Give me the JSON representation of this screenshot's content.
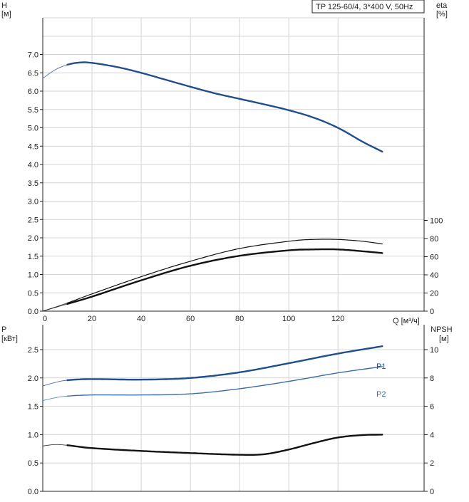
{
  "chart_data": [
    {
      "type": "line",
      "title": "TP 125-60/4, 3*400 V, 50Hz",
      "xlabel": "Q [м³/ч]",
      "x_ticks": [
        "0",
        "20",
        "40",
        "60",
        "80",
        "100",
        "120"
      ],
      "xlim": [
        0,
        155
      ],
      "left_axis": {
        "label_line1": "H",
        "label_line2": "[м]",
        "ylim": [
          0,
          7.0
        ],
        "ticks": [
          "0.0",
          "0.5",
          "1.0",
          "1.5",
          "2.0",
          "2.5",
          "3.0",
          "3.5",
          "4.0",
          "4.5",
          "5.0",
          "5.5",
          "6.0",
          "6.5",
          "7.0"
        ]
      },
      "right_axis": {
        "label_line1": "eta",
        "label_line2": "[%]",
        "ylim": [
          0,
          100
        ],
        "ticks": [
          "0",
          "20",
          "40",
          "60",
          "80",
          "100"
        ]
      },
      "series": [
        {
          "key": "H",
          "axis": "left",
          "color": "#1f4e8c",
          "x": [
            0,
            5,
            10,
            15,
            20,
            30,
            40,
            50,
            60,
            70,
            80,
            90,
            100,
            110,
            120,
            130,
            138
          ],
          "y": [
            6.35,
            6.58,
            6.72,
            6.78,
            6.77,
            6.66,
            6.5,
            6.31,
            6.12,
            5.94,
            5.79,
            5.64,
            5.48,
            5.28,
            5.0,
            4.62,
            4.35
          ],
          "thin_until": 10
        },
        {
          "key": "eta_outer",
          "axis": "right",
          "color": "#111111",
          "x": [
            0,
            10,
            20,
            40,
            60,
            80,
            100,
            110,
            120,
            130,
            138
          ],
          "y": [
            0,
            9,
            19,
            38,
            55,
            69,
            77,
            79,
            79,
            77,
            74
          ],
          "thin_until": 10,
          "width": 1.2
        },
        {
          "key": "eta",
          "axis": "right",
          "color": "#111111",
          "x": [
            0,
            10,
            20,
            40,
            60,
            80,
            100,
            110,
            120,
            130,
            138
          ],
          "y": [
            0,
            8,
            16,
            34,
            50,
            61,
            67,
            68,
            68,
            66,
            64
          ],
          "thin_until": 10,
          "width": 2.4
        }
      ]
    },
    {
      "type": "line",
      "x_ticks": [
        "0",
        "20",
        "40",
        "60",
        "80",
        "100",
        "120"
      ],
      "xlim": [
        0,
        155
      ],
      "left_axis": {
        "label_line1": "P",
        "label_line2": "[кВт]",
        "ylim": [
          0,
          3.0
        ],
        "ticks": [
          "0.0",
          "0.5",
          "1.0",
          "1.5",
          "2.0",
          "2.5"
        ]
      },
      "right_axis": {
        "label_line1": "NPSH",
        "label_line2": "[м]",
        "ylim": [
          0,
          12
        ],
        "ticks": [
          "0",
          "2",
          "4",
          "6",
          "8",
          "10"
        ]
      },
      "series": [
        {
          "key": "P1",
          "name": "P1",
          "axis": "left",
          "color": "#1f4e8c",
          "x": [
            0,
            5,
            10,
            20,
            40,
            60,
            80,
            100,
            120,
            138
          ],
          "y": [
            1.86,
            1.92,
            1.96,
            1.98,
            1.97,
            2.0,
            2.1,
            2.26,
            2.43,
            2.56
          ],
          "thin_until": 10,
          "width": 2.4
        },
        {
          "key": "P2",
          "name": "P2",
          "axis": "left",
          "color": "#3a6ea8",
          "x": [
            0,
            5,
            10,
            20,
            40,
            60,
            80,
            100,
            120,
            138
          ],
          "y": [
            1.6,
            1.65,
            1.68,
            1.7,
            1.7,
            1.72,
            1.81,
            1.94,
            2.09,
            2.2
          ],
          "thin_until": 10,
          "width": 1.4
        },
        {
          "key": "NPSH",
          "axis": "right",
          "color": "#111111",
          "x": [
            0,
            5,
            10,
            20,
            40,
            60,
            80,
            90,
            100,
            110,
            120,
            130,
            138
          ],
          "y": [
            3.2,
            3.3,
            3.25,
            3.05,
            2.85,
            2.7,
            2.58,
            2.62,
            2.95,
            3.4,
            3.8,
            3.97,
            4.0
          ],
          "thin_until": 10,
          "width": 2.4
        }
      ]
    }
  ]
}
